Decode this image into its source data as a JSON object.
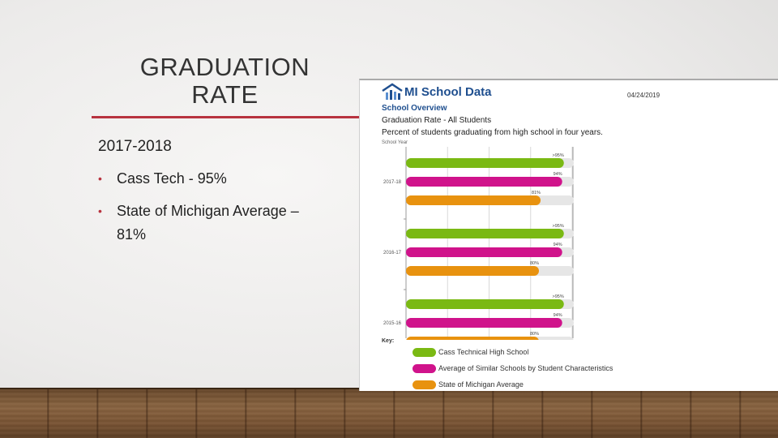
{
  "slide": {
    "title": "GRADUATION\nRATE",
    "year_heading": "2017-2018",
    "bullets": [
      "Cass Tech - 95%",
      "State of Michigan Average –\n81%"
    ]
  },
  "panel": {
    "brand": "MI School Data",
    "date": "04/24/2019",
    "section": "School Overview",
    "subtitle": "Graduation Rate - All Students",
    "description": "Percent of students graduating from high school in four years.",
    "axis_caption": "School Year",
    "key_title": "Key:"
  },
  "colors": {
    "accent": "#b8333f",
    "cass": "#7ab913",
    "similar": "#d0138b",
    "state": "#e8920f",
    "track": "#e6e6e6",
    "brand": "#1f4f8f"
  },
  "chart_data": {
    "type": "bar",
    "orientation": "horizontal",
    "categories": [
      "2017-18",
      "2016-17",
      "2015-16"
    ],
    "series": [
      {
        "name": "Cass Technical High School",
        "values": [
          95,
          95,
          95
        ],
        "labels": [
          ">95%",
          ">95%",
          ">95%"
        ]
      },
      {
        "name": "Average of Similar Schools by Student Characteristics",
        "values": [
          94,
          94,
          94
        ],
        "labels": [
          "94%",
          "94%",
          "94%"
        ]
      },
      {
        "name": "State of Michigan Average",
        "values": [
          81,
          80,
          80
        ],
        "labels": [
          "81%",
          "80%",
          "80%"
        ]
      }
    ],
    "xlim": [
      0,
      100
    ],
    "grid": true,
    "legend": "bottom"
  }
}
